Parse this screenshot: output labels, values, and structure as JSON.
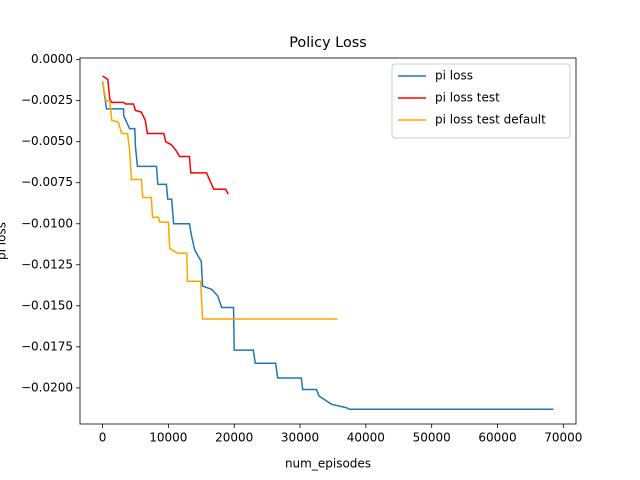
{
  "chart_data": {
    "type": "line",
    "title": "Policy Loss",
    "x_label": "num_episodes",
    "y_label": "pi loss",
    "xlim": [
      -3425,
      71925
    ],
    "ylim": [
      -0.0222,
      0.0001
    ],
    "xticks": [
      0,
      10000,
      20000,
      30000,
      40000,
      50000,
      60000,
      70000
    ],
    "yticks": [
      {
        "value": 0,
        "label": "0.0000"
      },
      {
        "value": -0.0025,
        "label": "−0.0025"
      },
      {
        "value": -0.005,
        "label": "−0.0050"
      },
      {
        "value": -0.0075,
        "label": "−0.0075"
      },
      {
        "value": -0.01,
        "label": "−0.0100"
      },
      {
        "value": -0.0125,
        "label": "−0.0125"
      },
      {
        "value": -0.015,
        "label": "−0.0150"
      },
      {
        "value": -0.0175,
        "label": "−0.0175"
      },
      {
        "value": -0.02,
        "label": "−0.0200"
      }
    ],
    "legend": "upper right",
    "series": [
      {
        "name": "pi loss",
        "color": "#1f77b4",
        "x": [
          0,
          600,
          3200,
          3200,
          4100,
          4900,
          5000,
          5300,
          8200,
          8400,
          9700,
          9900,
          10500,
          10800,
          13200,
          13500,
          14000,
          15000,
          15200,
          16600,
          17500,
          18100,
          19900,
          20000,
          22900,
          23200,
          26300,
          26600,
          30200,
          30400,
          32500,
          32900,
          34800,
          37000,
          37500,
          68500
        ],
        "values": [
          -0.0013,
          -0.003,
          -0.003,
          -0.0034,
          -0.0042,
          -0.0042,
          -0.0053,
          -0.0065,
          -0.0065,
          -0.0076,
          -0.0076,
          -0.0085,
          -0.0085,
          -0.01,
          -0.01,
          -0.0107,
          -0.0116,
          -0.0123,
          -0.0138,
          -0.014,
          -0.0144,
          -0.0151,
          -0.0151,
          -0.0177,
          -0.0177,
          -0.0185,
          -0.0185,
          -0.0194,
          -0.0194,
          -0.0201,
          -0.0201,
          -0.0205,
          -0.021,
          -0.0212,
          -0.0213,
          -0.0213
        ]
      },
      {
        "name": "pi loss test",
        "color": "#ff0000",
        "x": [
          0,
          800,
          1100,
          1400,
          3200,
          3500,
          4700,
          5000,
          5900,
          6500,
          6800,
          9300,
          9600,
          10500,
          11100,
          11700,
          13200,
          13400,
          15800,
          16900,
          18700,
          19100
        ],
        "values": [
          -0.001,
          -0.0012,
          -0.0024,
          -0.0026,
          -0.0026,
          -0.0027,
          -0.0027,
          -0.0031,
          -0.0032,
          -0.0037,
          -0.0045,
          -0.0045,
          -0.005,
          -0.0052,
          -0.0055,
          -0.0059,
          -0.0059,
          -0.0069,
          -0.0069,
          -0.0079,
          -0.0079,
          -0.0082
        ]
      },
      {
        "name": "pi loss test default",
        "color": "#ffa500",
        "x": [
          0,
          500,
          1100,
          1400,
          2400,
          2900,
          3800,
          4100,
          4400,
          5900,
          6100,
          7400,
          7600,
          8500,
          8700,
          10000,
          10200,
          11400,
          12800,
          12900,
          14900,
          15200,
          35700
        ],
        "values": [
          -0.0013,
          -0.0025,
          -0.0025,
          -0.0037,
          -0.0038,
          -0.0045,
          -0.0045,
          -0.0055,
          -0.0073,
          -0.0073,
          -0.0084,
          -0.0084,
          -0.0096,
          -0.0096,
          -0.0099,
          -0.0099,
          -0.0115,
          -0.0118,
          -0.0118,
          -0.0135,
          -0.0135,
          -0.0158,
          -0.0158
        ]
      }
    ]
  }
}
